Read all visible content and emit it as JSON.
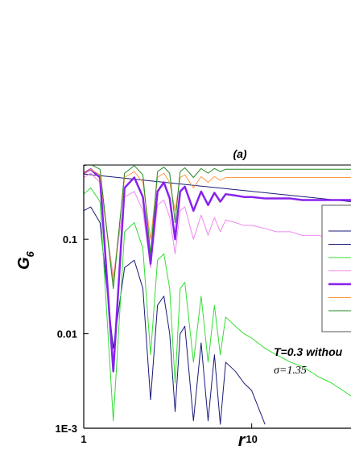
{
  "chart_data": {
    "type": "line",
    "title": "(a)",
    "xlabel": "r",
    "ylabel": "G",
    "ylabel_subscript": "6",
    "annotations": [
      "T=0.3 withou",
      "σ=1.35"
    ],
    "xscale": "log",
    "yscale": "log",
    "xlim": [
      1,
      39
    ],
    "ylim": [
      0.001,
      0.61
    ],
    "xticks": [
      1,
      10
    ],
    "yticks": [
      {
        "value": 0.001,
        "label": "1E-3"
      },
      0.01,
      0.1
    ],
    "x": [
      1,
      1.1,
      1.25,
      1.5,
      1.75,
      2,
      2.25,
      2.5,
      2.75,
      3,
      3.25,
      3.5,
      3.75,
      4,
      4.5,
      5,
      5.5,
      6,
      6.5,
      7,
      8,
      9,
      10,
      12,
      14,
      17,
      20,
      25,
      30,
      39
    ],
    "series": [
      {
        "color": "#1a1a7a",
        "line_width": 1,
        "x": [
          1,
          39
        ],
        "values": [
          0.49,
          0.25
        ]
      },
      {
        "color": "#1a1a7a",
        "line_width": 1,
        "values": [
          0.2,
          0.22,
          0.15,
          0.007,
          0.05,
          0.06,
          0.03,
          0.002,
          0.02,
          0.025,
          0.01,
          0.0015,
          0.01,
          0.012,
          0.0012,
          0.008,
          0.0012,
          0.006,
          0.0011,
          0.005,
          0.004,
          0.003,
          0.0025,
          0.0011,
          null,
          null,
          null,
          null,
          null,
          null
        ]
      },
      {
        "color": "#33dd33",
        "line_width": 1,
        "values": [
          0.3,
          0.35,
          0.25,
          0.0012,
          0.12,
          0.15,
          0.08,
          0.006,
          0.06,
          0.07,
          0.03,
          0.003,
          0.03,
          0.035,
          0.005,
          0.025,
          0.005,
          0.02,
          0.006,
          0.015,
          0.012,
          0.01,
          0.009,
          0.007,
          0.006,
          0.005,
          0.0045,
          0.0035,
          0.003,
          0.0022
        ]
      },
      {
        "color": "#ee88ee",
        "line_width": 1,
        "values": [
          0.45,
          0.5,
          0.4,
          0.04,
          0.28,
          0.32,
          0.2,
          0.05,
          0.23,
          0.26,
          0.17,
          0.07,
          0.2,
          0.22,
          0.1,
          0.18,
          0.11,
          0.17,
          0.12,
          0.16,
          0.15,
          0.14,
          0.14,
          0.13,
          0.12,
          0.12,
          0.11,
          0.11,
          0.1,
          0.1
        ]
      },
      {
        "color": "#8822ee",
        "line_width": 2.5,
        "values": [
          0.5,
          0.55,
          0.45,
          0.004,
          0.35,
          0.45,
          0.28,
          0.055,
          0.32,
          0.4,
          0.27,
          0.1,
          0.32,
          0.36,
          0.2,
          0.32,
          0.23,
          0.31,
          0.25,
          0.3,
          0.29,
          0.28,
          0.28,
          0.27,
          0.27,
          0.27,
          0.26,
          0.26,
          0.26,
          0.26
        ]
      },
      {
        "color": "#ff9944",
        "line_width": 1,
        "values": [
          0.5,
          0.55,
          0.48,
          0.035,
          0.45,
          0.52,
          0.4,
          0.1,
          0.45,
          0.5,
          0.4,
          0.2,
          0.45,
          0.48,
          0.35,
          0.46,
          0.4,
          0.46,
          0.42,
          0.45,
          0.45,
          0.45,
          0.45,
          0.45,
          0.45,
          0.45,
          0.45,
          0.45,
          0.45,
          0.45
        ]
      },
      {
        "color": "#228822",
        "line_width": 1,
        "values": [
          0.6,
          0.62,
          0.55,
          0.03,
          0.5,
          0.6,
          0.48,
          0.07,
          0.52,
          0.58,
          0.5,
          0.15,
          0.52,
          0.57,
          0.45,
          0.56,
          0.5,
          0.56,
          0.52,
          0.55,
          0.55,
          0.55,
          0.55,
          0.55,
          0.55,
          0.55,
          0.55,
          0.55,
          0.55,
          0.55
        ]
      }
    ]
  }
}
